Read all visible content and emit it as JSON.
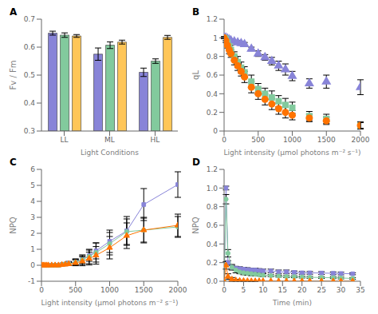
{
  "chart_data": [
    {
      "type": "bar",
      "title": "A",
      "categories": [
        "LL",
        "ML",
        "HL"
      ],
      "series": [
        {
          "color": "#8884d8",
          "values": [
            0.65,
            0.575,
            0.51
          ],
          "errors": [
            0.007,
            0.022,
            0.015
          ]
        },
        {
          "color": "#82ca9d",
          "values": [
            0.643,
            0.607,
            0.55
          ],
          "errors": [
            0.008,
            0.012,
            0.008
          ]
        },
        {
          "color": "#ffc658",
          "values": [
            0.64,
            0.618,
            0.635
          ],
          "errors": [
            0.005,
            0.007,
            0.007
          ]
        }
      ],
      "xlabel": "Light Conditions",
      "ylabel": "Fv / Fm",
      "ylim": [
        0.3,
        0.7
      ],
      "yticks": [
        0.3,
        0.4,
        0.5,
        0.6,
        0.7
      ]
    },
    {
      "type": "scatter",
      "title": "B",
      "x": [
        0,
        25,
        50,
        75,
        100,
        150,
        200,
        250,
        300,
        400,
        500,
        600,
        700,
        800,
        900,
        1000,
        1250,
        1500,
        2000
      ],
      "series": [
        {
          "color": "#8884d8",
          "marker": "triangle",
          "values": [
            1.0,
            1.0,
            0.99,
            0.98,
            0.97,
            0.96,
            0.95,
            0.94,
            0.93,
            0.88,
            0.83,
            0.79,
            0.75,
            0.7,
            0.66,
            0.59,
            0.51,
            0.53,
            0.47
          ],
          "errors": [
            0.01,
            0.01,
            0.01,
            0.01,
            0.01,
            0.01,
            0.02,
            0.02,
            0.02,
            0.02,
            0.03,
            0.03,
            0.04,
            0.05,
            0.06,
            0.05,
            0.05,
            0.07,
            0.08
          ]
        },
        {
          "color": "#82ca9d",
          "marker": "square",
          "values": [
            1.0,
            0.99,
            0.95,
            0.91,
            0.87,
            0.8,
            0.74,
            0.68,
            0.63,
            0.53,
            0.45,
            0.4,
            0.36,
            0.32,
            0.28,
            0.25,
            0.16,
            0.13,
            0.06
          ],
          "errors": [
            0.01,
            0.02,
            0.03,
            0.04,
            0.05,
            0.05,
            0.06,
            0.06,
            0.06,
            0.07,
            0.06,
            0.06,
            0.07,
            0.06,
            0.07,
            0.06,
            0.05,
            0.05,
            0.04
          ]
        },
        {
          "color": "#ff7300",
          "marker": "circle",
          "values": [
            1.0,
            0.97,
            0.92,
            0.87,
            0.83,
            0.76,
            0.7,
            0.64,
            0.58,
            0.47,
            0.4,
            0.34,
            0.29,
            0.24,
            0.2,
            0.17,
            0.14,
            0.11,
            0.06
          ],
          "errors": [
            0.01,
            0.02,
            0.03,
            0.04,
            0.04,
            0.05,
            0.05,
            0.05,
            0.06,
            0.06,
            0.06,
            0.06,
            0.06,
            0.06,
            0.06,
            0.05,
            0.04,
            0.04,
            0.03
          ]
        }
      ],
      "xlabel": "Light intensity (μmol photons m⁻² s⁻¹)",
      "ylabel": "qL",
      "xlim": [
        0,
        2000
      ],
      "xticks": [
        0,
        500,
        1000,
        1500,
        2000
      ],
      "ylim": [
        0,
        1.2
      ],
      "yticks": [
        0,
        0.2,
        0.4,
        0.6,
        0.8,
        1,
        1.2
      ]
    },
    {
      "type": "line",
      "title": "C",
      "x": [
        0,
        25,
        50,
        75,
        100,
        150,
        200,
        250,
        300,
        350,
        400,
        500,
        600,
        700,
        800,
        1000,
        1250,
        1500,
        2000
      ],
      "series": [
        {
          "color": "#8884d8",
          "marker": "square",
          "values": [
            0.0,
            0.0,
            0.0,
            0.0,
            0.0,
            0.0,
            0.0,
            0.0,
            0.05,
            0.08,
            0.12,
            0.2,
            0.35,
            0.6,
            0.9,
            1.5,
            2.15,
            3.8,
            5.05
          ],
          "errors": [
            0.0,
            0.0,
            0.0,
            0.0,
            0.0,
            0.0,
            0.01,
            0.01,
            0.05,
            0.08,
            0.12,
            0.18,
            0.25,
            0.35,
            0.5,
            0.7,
            0.9,
            1.0,
            0.8
          ]
        },
        {
          "color": "#82ca9d",
          "marker": "circle",
          "values": [
            0.0,
            0.0,
            0.0,
            0.0,
            0.0,
            0.0,
            0.0,
            0.0,
            0.05,
            0.08,
            0.1,
            0.2,
            0.35,
            0.55,
            0.8,
            1.35,
            2.1,
            2.2,
            2.4
          ],
          "errors": [
            0.0,
            0.0,
            0.0,
            0.0,
            0.0,
            0.01,
            0.01,
            0.02,
            0.05,
            0.08,
            0.12,
            0.2,
            0.3,
            0.45,
            0.6,
            0.7,
            0.8,
            0.75,
            0.65
          ]
        },
        {
          "color": "#ff7300",
          "marker": "triangle",
          "values": [
            0.0,
            0.0,
            0.0,
            0.0,
            0.0,
            0.0,
            0.0,
            0.0,
            0.03,
            0.05,
            0.08,
            0.15,
            0.25,
            0.42,
            0.62,
            1.1,
            1.85,
            2.2,
            2.5
          ],
          "errors": [
            0.0,
            0.0,
            0.0,
            0.0,
            0.0,
            0.0,
            0.01,
            0.01,
            0.04,
            0.06,
            0.1,
            0.18,
            0.28,
            0.4,
            0.55,
            0.7,
            0.8,
            0.8,
            0.7
          ]
        }
      ],
      "xlabel": "Light intensity (μmol photons m⁻² s⁻¹)",
      "ylabel": "NPQ",
      "xlim": [
        0,
        2000
      ],
      "xticks": [
        0,
        500,
        1000,
        1500,
        2000
      ],
      "ylim": [
        -1,
        6
      ],
      "yticks": [
        -1,
        0,
        1,
        2,
        3,
        4,
        5,
        6
      ]
    },
    {
      "type": "line",
      "title": "D",
      "x": [
        0,
        0.5,
        1,
        2,
        3,
        4,
        5,
        6,
        7,
        8,
        9,
        10,
        12,
        14,
        16,
        18,
        20,
        22,
        25,
        28,
        30,
        33
      ],
      "series": [
        {
          "color": "#8884d8",
          "marker": "square",
          "values": [
            0.0,
            1.0,
            0.2,
            0.15,
            0.14,
            0.135,
            0.13,
            0.125,
            0.12,
            0.12,
            0.115,
            0.11,
            0.11,
            0.1,
            0.1,
            0.095,
            0.09,
            0.09,
            0.088,
            0.085,
            0.083,
            0.08
          ],
          "errors": [
            0.0,
            0.02,
            0.02,
            0.02,
            0.02,
            0.02,
            0.02,
            0.02,
            0.02,
            0.02,
            0.02,
            0.02,
            0.02,
            0.02,
            0.02,
            0.015,
            0.015,
            0.015,
            0.015,
            0.015,
            0.015,
            0.01
          ]
        },
        {
          "color": "#82ca9d",
          "marker": "circle",
          "values": [
            0.0,
            0.88,
            0.3,
            0.15,
            0.12,
            0.1,
            0.09,
            0.085,
            0.08,
            0.075,
            0.07,
            0.065,
            0.06,
            0.055,
            0.05,
            0.048,
            0.045,
            0.042,
            0.04,
            0.038,
            0.035,
            0.03
          ],
          "errors": [
            0.0,
            0.05,
            0.04,
            0.03,
            0.03,
            0.02,
            0.02,
            0.02,
            0.02,
            0.015,
            0.015,
            0.015,
            0.01,
            0.01,
            0.01,
            0.01,
            0.01,
            0.01,
            0.01,
            0.01,
            0.01,
            0.01
          ]
        },
        {
          "color": "#ff7300",
          "marker": "triangle",
          "values": [
            0.0,
            0.17,
            0.05,
            0.02,
            0.01,
            0.005,
            0.003,
            0.002,
            0.001,
            0.001,
            0.001,
            0.001,
            0.001,
            0.0,
            0.0,
            0.0,
            0.0,
            0.0,
            0.0,
            0.0,
            0.0,
            0.0
          ],
          "errors": [
            0.0,
            0.04,
            0.03,
            0.02,
            0.01,
            0.005,
            0.003,
            0.002,
            0.001,
            0.001,
            0.0,
            0.0,
            0.0,
            0.0,
            0.0,
            0.0,
            0.0,
            0.0,
            0.0,
            0.0,
            0.0,
            0.0
          ]
        }
      ],
      "xlabel": "Time (min)",
      "ylabel": "NPQ",
      "xlim": [
        0,
        35
      ],
      "xticks": [
        0,
        5,
        10,
        15,
        20,
        25,
        30,
        35
      ],
      "ylim": [
        0,
        1.2
      ],
      "yticks": [
        {
          "value": 0,
          "label": "0.0"
        },
        0.2,
        0.4,
        0.6,
        0.8,
        {
          "value": 1,
          "label": "1.0"
        },
        1.2
      ]
    }
  ]
}
